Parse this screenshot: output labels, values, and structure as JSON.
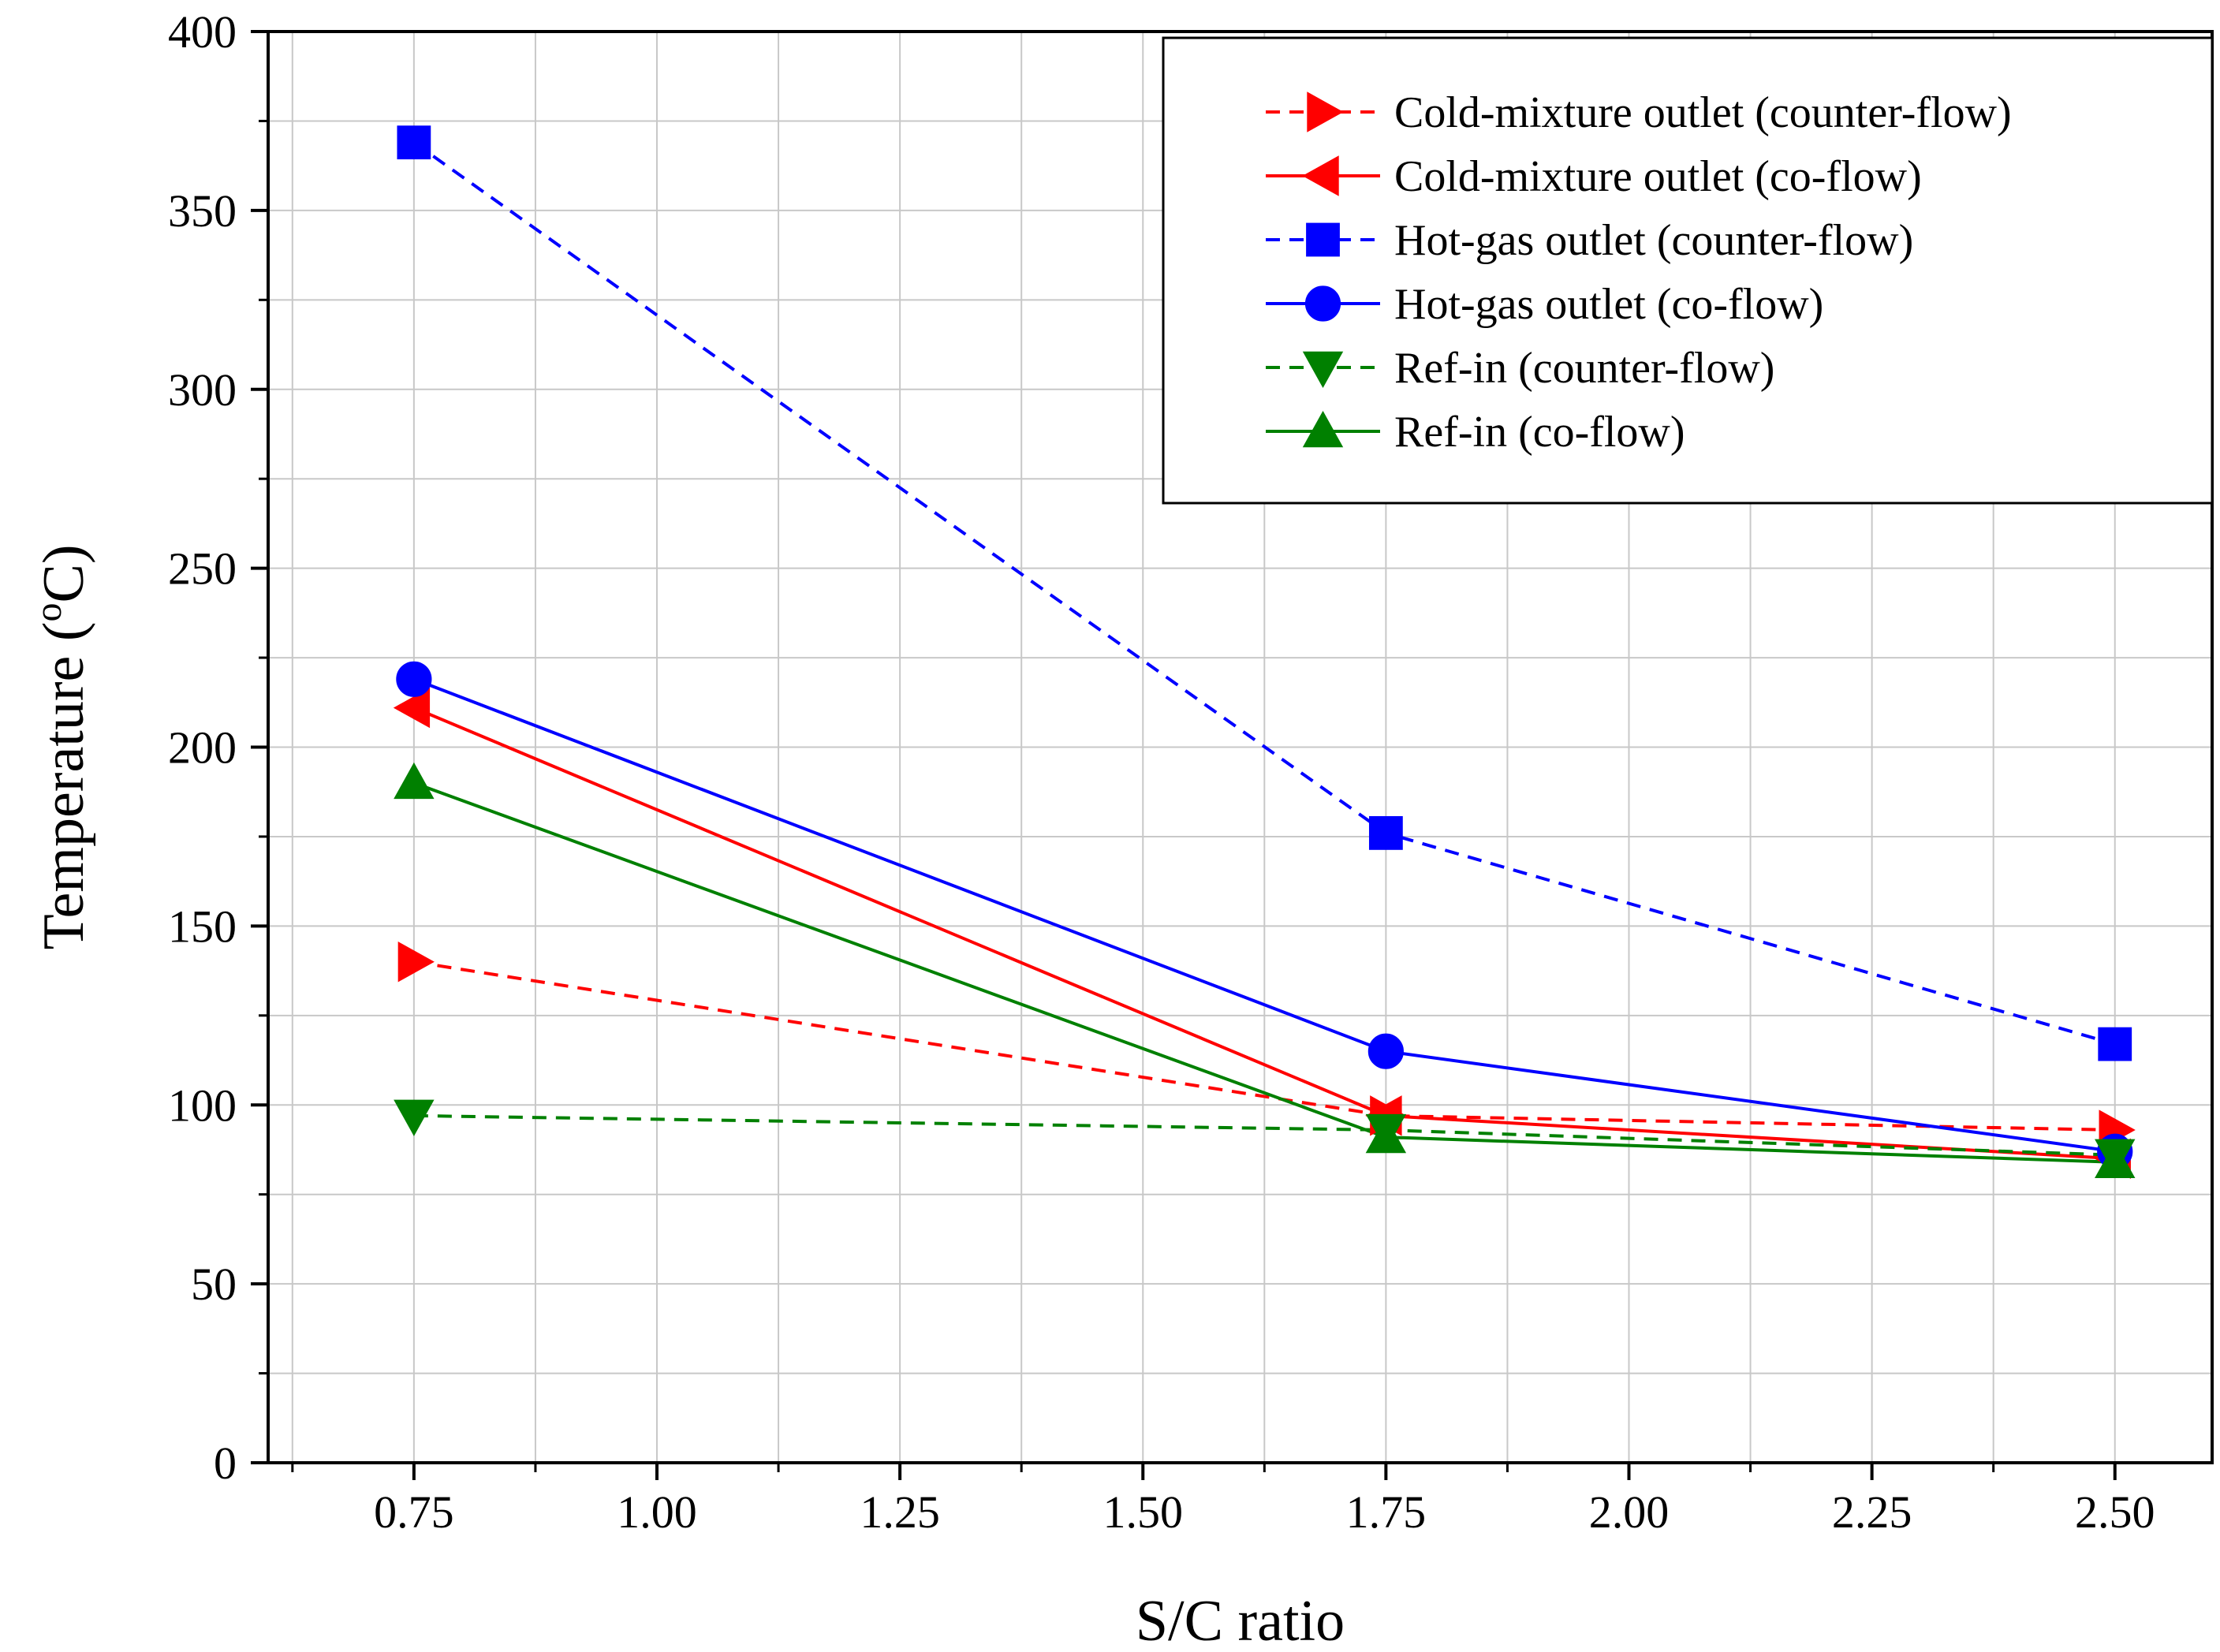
{
  "chart_data": {
    "type": "line",
    "title": "",
    "xlabel": "S/C ratio",
    "ylabel": "Temperature (°C)",
    "ylabel_parts": {
      "main": "Temperature (",
      "sup": "o",
      "unit": "C)"
    },
    "xlim": [
      0.6,
      2.6
    ],
    "ylim": [
      0,
      400
    ],
    "xticks": [
      0.75,
      1.0,
      1.25,
      1.5,
      1.75,
      2.0,
      2.25,
      2.5
    ],
    "xtick_labels": [
      "0.75",
      "1.00",
      "1.25",
      "1.50",
      "1.75",
      "2.00",
      "2.25",
      "2.50"
    ],
    "yticks": [
      0,
      50,
      100,
      150,
      200,
      250,
      300,
      350,
      400
    ],
    "ytick_labels": [
      "0",
      "50",
      "100",
      "150",
      "200",
      "250",
      "300",
      "350",
      "400"
    ],
    "grid": true,
    "legend_position": "top-right",
    "x": [
      0.75,
      1.75,
      2.5
    ],
    "series": [
      {
        "name": "Cold-mixture outlet (counter-flow)",
        "values": [
          140,
          97,
          93
        ],
        "color": "#ff0000",
        "dash": "dashed",
        "marker": "triangle-right"
      },
      {
        "name": "Cold-mixture outlet (co-flow)",
        "values": [
          211,
          97,
          85
        ],
        "color": "#ff0000",
        "dash": "solid",
        "marker": "triangle-left"
      },
      {
        "name": "Hot-gas outlet (counter-flow)",
        "values": [
          369,
          176,
          117
        ],
        "color": "#0000ff",
        "dash": "dashed",
        "marker": "square"
      },
      {
        "name": "Hot-gas outlet (co-flow)",
        "values": [
          219,
          115,
          87
        ],
        "color": "#0000ff",
        "dash": "solid",
        "marker": "circle"
      },
      {
        "name": "Ref-in (counter-flow)",
        "values": [
          97,
          93,
          86
        ],
        "color": "#008000",
        "dash": "dashed",
        "marker": "triangle-down"
      },
      {
        "name": "Ref-in (co-flow)",
        "values": [
          190,
          91,
          84
        ],
        "color": "#008000",
        "dash": "solid",
        "marker": "triangle-up"
      }
    ]
  }
}
